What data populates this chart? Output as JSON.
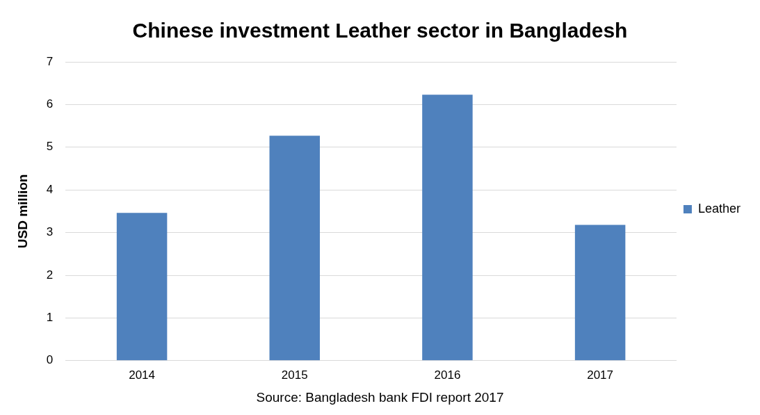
{
  "chart_data": {
    "type": "bar",
    "title": "Chinese investment Leather sector in Bangladesh",
    "ylabel": "USD million",
    "categories": [
      "2014",
      "2015",
      "2016",
      "2017"
    ],
    "series": [
      {
        "name": "Leather",
        "color": "#4f81bd",
        "values": [
          3.46,
          5.27,
          6.23,
          3.18
        ]
      }
    ],
    "ylim": [
      0,
      7
    ],
    "yticks": [
      0,
      1,
      2,
      3,
      4,
      5,
      6,
      7
    ],
    "grid": "y",
    "legend": "right",
    "annotations": [
      "Source: Bangladesh bank FDI report 2017"
    ]
  }
}
